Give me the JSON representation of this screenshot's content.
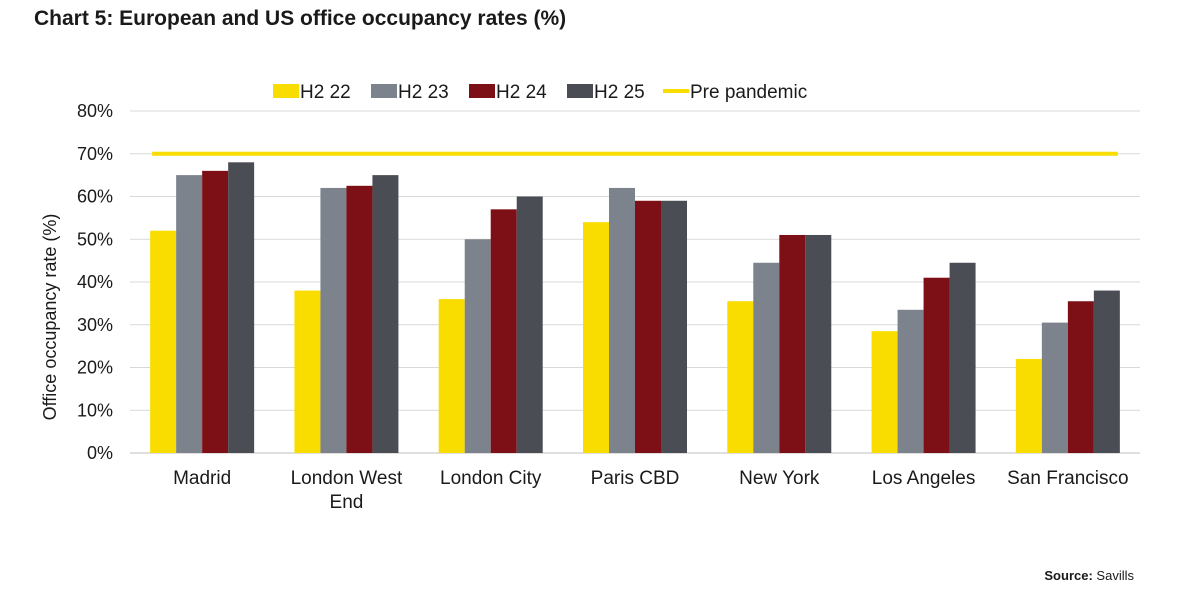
{
  "title": "Chart 5: European and US office occupancy rates (%)",
  "source": {
    "label": "Source:",
    "value": "Savills"
  },
  "colors": {
    "H2 22": "#f9dc00",
    "H2 23": "#7c838c",
    "H2 24": "#7d1016",
    "H2 25": "#4a4d53",
    "pre_pandemic": "#f9dc00",
    "grid": "#d9d9d9"
  },
  "chart_data": {
    "type": "bar",
    "title": "Chart 5: European and US office occupancy rates (%)",
    "xlabel": "",
    "ylabel": "Office occupancy rate (%)",
    "ylim": [
      0,
      80
    ],
    "yticks": [
      "0%",
      "10%",
      "20%",
      "30%",
      "40%",
      "50%",
      "60%",
      "70%",
      "80%"
    ],
    "categories": [
      "Madrid",
      "London West End",
      "London City",
      "Paris CBD",
      "New York",
      "Los Angeles",
      "San Francisco"
    ],
    "category_lines": [
      [
        "Madrid"
      ],
      [
        "London West",
        "End"
      ],
      [
        "London City"
      ],
      [
        "Paris CBD"
      ],
      [
        "New York"
      ],
      [
        "Los Angeles"
      ],
      [
        "San Francisco"
      ]
    ],
    "series": [
      {
        "name": "H2 22",
        "values": [
          52,
          38,
          36,
          54,
          35.5,
          28.5,
          22
        ]
      },
      {
        "name": "H2 23",
        "values": [
          65,
          62,
          50,
          62,
          44.5,
          33.5,
          30.5
        ]
      },
      {
        "name": "H2 24",
        "values": [
          66,
          62.5,
          57,
          59,
          51,
          41,
          35.5
        ]
      },
      {
        "name": "H2 25",
        "values": [
          68,
          65,
          60,
          59,
          51,
          44.5,
          38
        ]
      }
    ],
    "reference_line": {
      "name": "Pre pandemic",
      "value": 70
    },
    "legend": [
      "H2 22",
      "H2 23",
      "H2 24",
      "H2 25",
      "Pre pandemic"
    ],
    "legend_position": "top",
    "grid": true
  }
}
